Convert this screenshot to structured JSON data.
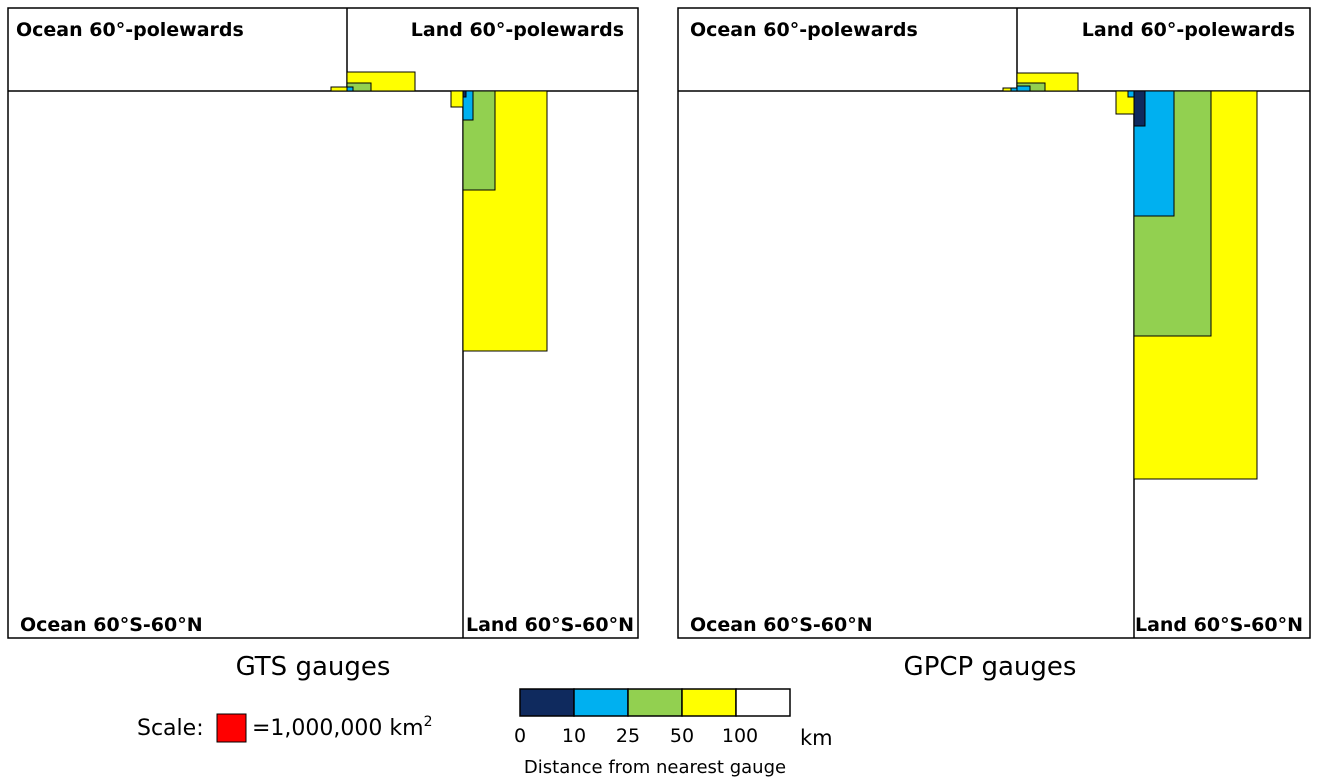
{
  "panels": [
    {
      "title": "GTS gauges",
      "quadrants": {
        "ocean_pole": "Ocean 60°-polewards",
        "land_pole": "Land 60°-polewards",
        "ocean_mid": "Ocean 60°S-60°N",
        "land_mid": "Land 60°S-60°N"
      }
    },
    {
      "title": "GPCP gauges",
      "quadrants": {
        "ocean_pole": "Ocean 60°-polewards",
        "land_pole": "Land 60°-polewards",
        "ocean_mid": "Ocean 60°S-60°N",
        "land_mid": "Land 60°S-60°N"
      }
    }
  ],
  "scale": {
    "label": "Scale:",
    "swatch_color": "#ff0000",
    "text": "=1,000,000 km",
    "superscript": "2"
  },
  "legend": {
    "colors": [
      "#0f2a5e",
      "#00b0f0",
      "#92d050",
      "#ffff00",
      "#ffffff"
    ],
    "ticks": [
      "0",
      "10",
      "25",
      "50",
      "100"
    ],
    "unit": "km",
    "caption": "Distance from nearest gauge"
  }
}
